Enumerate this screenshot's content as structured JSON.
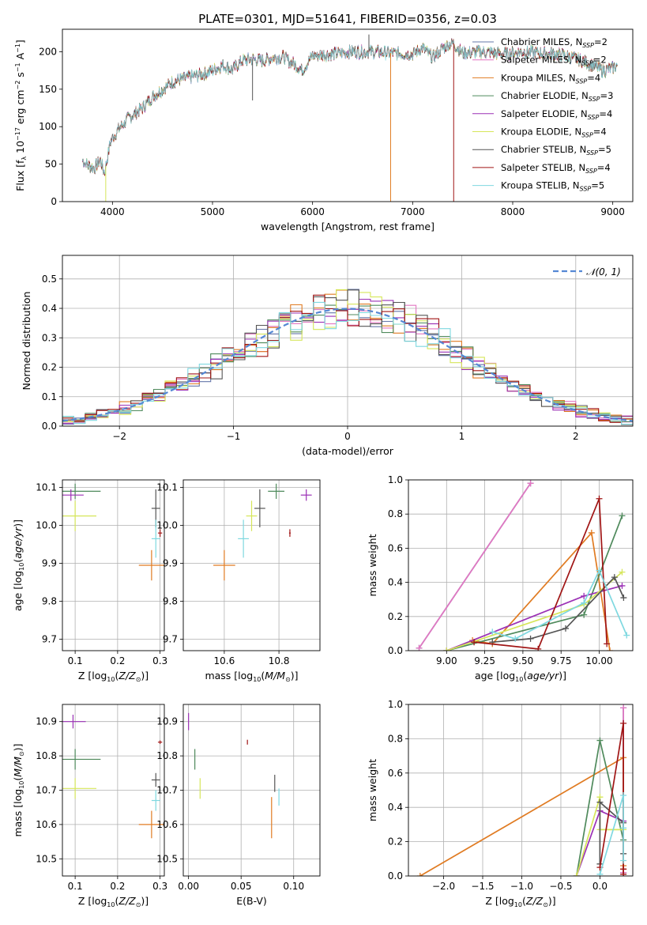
{
  "figure": {
    "title": "PLATE=0301, MJD=51641, FIBERID=0356, z=0.03"
  },
  "colors": {
    "Chabrier MILES": "#6677aa",
    "Salpeter MILES": "#e377c2",
    "Kroupa MILES": "#e07b22",
    "Chabrier ELODIE": "#4f8a5c",
    "Salpeter ELODIE": "#9b30b5",
    "Kroupa ELODIE": "#d6e65a",
    "Chabrier STELIB": "#555555",
    "Salpeter STELIB": "#a01515",
    "Kroupa STELIB": "#7fd8e0",
    "Normal curve": "#5588d4"
  },
  "chart_data": [
    {
      "id": "spectrum",
      "type": "line",
      "xlabel": "wavelength [Angstrom, rest frame]",
      "ylabel": "Flux [f_λ 10⁻¹⁷ erg cm⁻² s⁻¹ A⁻¹]",
      "xlim": [
        3500,
        9200
      ],
      "ylim": [
        0,
        230
      ],
      "xticks": [
        4000,
        5000,
        6000,
        7000,
        8000,
        9000
      ],
      "yticks": [
        0,
        50,
        100,
        150,
        200
      ],
      "legend": "top-right",
      "grid": false,
      "series": [
        {
          "name": "Chabrier MILES, N_SSP=2",
          "label": "Chabrier MILES, N",
          "sub": "SSP",
          "suffix": "=2"
        },
        {
          "name": "Salpeter MILES, N_SSP=2",
          "label": "Salpeter MILES, N",
          "sub": "SSP",
          "suffix": "=2"
        },
        {
          "name": "Kroupa MILES, N_SSP=4",
          "label": "Kroupa MILES, N",
          "sub": "SSP",
          "suffix": "=4"
        },
        {
          "name": "Chabrier ELODIE, N_SSP=3",
          "label": "Chabrier ELODIE, N",
          "sub": "SSP",
          "suffix": "=3"
        },
        {
          "name": "Salpeter ELODIE, N_SSP=4",
          "label": "Salpeter ELODIE, N",
          "sub": "SSP",
          "suffix": "=4"
        },
        {
          "name": "Kroupa ELODIE, N_SSP=4",
          "label": "Kroupa ELODIE, N",
          "sub": "SSP",
          "suffix": "=4"
        },
        {
          "name": "Chabrier STELIB, N_SSP=5",
          "label": "Chabrier STELIB, N",
          "sub": "SSP",
          "suffix": "=5"
        },
        {
          "name": "Salpeter STELIB, N_SSP=4",
          "label": "Salpeter STELIB, N",
          "sub": "SSP",
          "suffix": "=4"
        },
        {
          "name": "Kroupa STELIB, N_SSP=5",
          "label": "Kroupa STELIB, N",
          "sub": "SSP",
          "suffix": "=5"
        }
      ],
      "spectrum_envelope": {
        "x": [
          3700,
          3760,
          3820,
          3880,
          3920,
          3980,
          4050,
          4150,
          4250,
          4300,
          4400,
          4500,
          4600,
          4750,
          4900,
          5000,
          5100,
          5200,
          5300,
          5400,
          5500,
          5600,
          5700,
          5800,
          5900,
          6000,
          6200,
          6400,
          6600,
          6800,
          7000,
          7100,
          7200,
          7300,
          7400,
          7500,
          7700,
          7900,
          8100,
          8300,
          8500,
          8700,
          8900,
          9000,
          9050
        ],
        "y": [
          55,
          48,
          45,
          55,
          38,
          80,
          95,
          110,
          120,
          125,
          140,
          150,
          160,
          165,
          170,
          175,
          182,
          176,
          188,
          190,
          188,
          192,
          193,
          185,
          176,
          195,
          197,
          200,
          200,
          198,
          197,
          205,
          192,
          205,
          212,
          198,
          200,
          197,
          200,
          198,
          196,
          188,
          175,
          178,
          183
        ]
      },
      "features": [
        {
          "x": 3933,
          "y": 0,
          "series": "Kroupa ELODIE"
        },
        {
          "x": 5400,
          "y": 135,
          "series": "Chabrier STELIB"
        },
        {
          "x": 6563,
          "y": 223,
          "series": "Chabrier STELIB"
        },
        {
          "x": 6780,
          "y": 0,
          "series": "Kroupa MILES"
        },
        {
          "x": 7410,
          "y": 0,
          "series": "Salpeter STELIB"
        }
      ]
    },
    {
      "id": "residuals",
      "type": "line",
      "xlabel": "(data-model)/error",
      "ylabel": "Normed distribution",
      "xlim": [
        -2.5,
        2.5
      ],
      "ylim": [
        0,
        0.58
      ],
      "xticks": [
        -2,
        -1,
        0,
        1,
        2
      ],
      "yticks": [
        0.0,
        0.1,
        0.2,
        0.3,
        0.4,
        0.5
      ],
      "grid": true,
      "legend": "top-right",
      "normal_label": "𝒩(0, 1)",
      "bin_width": 0.1
    },
    {
      "id": "age-vs-Z",
      "type": "scatter",
      "xlabel": "Z [log10(Z/Z⊙)]",
      "ylabel": "age  [log10(age/yr)]",
      "xlim": [
        0.07,
        0.31
      ],
      "ylim": [
        9.67,
        10.12
      ],
      "xticks": [
        0.1,
        0.2,
        0.3
      ],
      "yticks": [
        9.7,
        9.8,
        9.9,
        10.0,
        10.1
      ],
      "grid": true,
      "points": [
        {
          "series": "Chabrier ELODIE",
          "x": 0.1,
          "y": 10.09,
          "xerr": 0.06,
          "yerr": 0.02
        },
        {
          "series": "Salpeter ELODIE",
          "x": 0.09,
          "y": 10.08,
          "xerr": 0.03,
          "yerr": 0.015
        },
        {
          "series": "Kroupa ELODIE",
          "x": 0.1,
          "y": 10.025,
          "xerr": 0.05,
          "yerr": 0.04
        },
        {
          "series": "Chabrier STELIB",
          "x": 0.29,
          "y": 10.045,
          "xerr": 0.01,
          "yerr": 0.05
        },
        {
          "series": "Salpeter STELIB",
          "x": 0.3,
          "y": 9.98,
          "xerr": 0.005,
          "yerr": 0.01
        },
        {
          "series": "Kroupa STELIB",
          "x": 0.29,
          "y": 9.965,
          "xerr": 0.01,
          "yerr": 0.05
        },
        {
          "series": "Kroupa MILES",
          "x": 0.28,
          "y": 9.895,
          "xerr": 0.03,
          "yerr": 0.04
        }
      ]
    },
    {
      "id": "age-vs-mass",
      "type": "scatter",
      "xlabel": "mass [log10(M/M⊙)]",
      "ylabel": "",
      "xlim": [
        10.45,
        10.95
      ],
      "ylim": [
        9.67,
        10.12
      ],
      "xticks": [
        10.6,
        10.8
      ],
      "yticks": [
        9.7,
        9.8,
        9.9,
        10.0,
        10.1
      ],
      "grid": true,
      "points": [
        {
          "series": "Chabrier ELODIE",
          "x": 10.79,
          "y": 10.09,
          "xerr": 0.03,
          "yerr": 0.02
        },
        {
          "series": "Salpeter ELODIE",
          "x": 10.9,
          "y": 10.08,
          "xerr": 0.02,
          "yerr": 0.015
        },
        {
          "series": "Kroupa ELODIE",
          "x": 10.7,
          "y": 10.025,
          "xerr": 0.02,
          "yerr": 0.04
        },
        {
          "series": "Chabrier STELIB",
          "x": 10.73,
          "y": 10.045,
          "xerr": 0.02,
          "yerr": 0.05
        },
        {
          "series": "Salpeter STELIB",
          "x": 10.84,
          "y": 9.98,
          "xerr": 0.003,
          "yerr": 0.01
        },
        {
          "series": "Kroupa STELIB",
          "x": 10.67,
          "y": 9.965,
          "xerr": 0.02,
          "yerr": 0.05
        },
        {
          "series": "Kroupa MILES",
          "x": 10.6,
          "y": 9.895,
          "xerr": 0.04,
          "yerr": 0.04
        }
      ]
    },
    {
      "id": "massweight-vs-age",
      "type": "line",
      "xlabel": "age  [log10(age/yr)]",
      "ylabel": "mass weight",
      "xlim": [
        8.75,
        10.22
      ],
      "ylim": [
        0,
        1.0
      ],
      "xticks": [
        9.0,
        9.25,
        9.5,
        9.75,
        10.0
      ],
      "tick_labels": [
        "9.00",
        "9.25",
        "9.50",
        "9.75",
        "10.00"
      ],
      "yticks": [
        0.0,
        0.2,
        0.4,
        0.6,
        0.8,
        1.0
      ],
      "grid": true,
      "series": [
        {
          "name": "Chabrier MILES",
          "x": [
            8.82,
            9.55
          ],
          "y": [
            0.015,
            0.98
          ]
        },
        {
          "name": "Salpeter MILES",
          "x": [
            8.82,
            9.55
          ],
          "y": [
            0.015,
            0.98
          ]
        },
        {
          "name": "Kroupa MILES",
          "x": [
            9.17,
            9.3,
            9.95,
            10.07
          ],
          "y": [
            0.06,
            0.04,
            0.69,
            0.0
          ]
        },
        {
          "name": "Chabrier ELODIE",
          "x": [
            9.0,
            9.9,
            10.15
          ],
          "y": [
            0.0,
            0.21,
            0.79
          ]
        },
        {
          "name": "Salpeter ELODIE",
          "x": [
            9.0,
            9.9,
            10.15
          ],
          "y": [
            0.0,
            0.32,
            0.38
          ]
        },
        {
          "name": "Kroupa ELODIE",
          "x": [
            9.0,
            9.9,
            10.15
          ],
          "y": [
            0.0,
            0.27,
            0.46
          ]
        },
        {
          "name": "Chabrier STELIB",
          "x": [
            9.3,
            9.55,
            9.78,
            10.1,
            10.16
          ],
          "y": [
            0.05,
            0.07,
            0.13,
            0.43,
            0.31
          ]
        },
        {
          "name": "Salpeter STELIB",
          "x": [
            9.18,
            9.6,
            10.0,
            10.05
          ],
          "y": [
            0.05,
            0.01,
            0.89,
            0.04
          ]
        },
        {
          "name": "Kroupa STELIB",
          "x": [
            9.3,
            9.45,
            9.9,
            10.0,
            10.18
          ],
          "y": [
            0.11,
            0.07,
            0.28,
            0.47,
            0.09
          ]
        }
      ]
    },
    {
      "id": "mass-vs-Z",
      "type": "scatter",
      "xlabel": "Z [log10(Z/Z⊙)]",
      "ylabel": "mass [log10(M/M⊙)]",
      "xlim": [
        0.07,
        0.31
      ],
      "ylim": [
        10.45,
        10.95
      ],
      "xticks": [
        0.1,
        0.2,
        0.3
      ],
      "yticks": [
        10.5,
        10.6,
        10.7,
        10.8,
        10.9
      ],
      "grid": true,
      "points": [
        {
          "series": "Salpeter ELODIE",
          "x": 0.095,
          "y": 10.9,
          "xerr": 0.03,
          "yerr": 0.02
        },
        {
          "series": "Chabrier ELODIE",
          "x": 0.1,
          "y": 10.79,
          "xerr": 0.06,
          "yerr": 0.03
        },
        {
          "series": "Kroupa ELODIE",
          "x": 0.1,
          "y": 10.705,
          "xerr": 0.05,
          "yerr": 0.03
        },
        {
          "series": "Salpeter STELIB",
          "x": 0.3,
          "y": 10.84,
          "xerr": 0.005,
          "yerr": 0.005
        },
        {
          "series": "Chabrier STELIB",
          "x": 0.29,
          "y": 10.73,
          "xerr": 0.01,
          "yerr": 0.02
        },
        {
          "series": "Kroupa STELIB",
          "x": 0.29,
          "y": 10.67,
          "xerr": 0.01,
          "yerr": 0.03
        },
        {
          "series": "Kroupa MILES",
          "x": 0.28,
          "y": 10.6,
          "xerr": 0.03,
          "yerr": 0.04
        }
      ]
    },
    {
      "id": "mass-vs-ebv",
      "type": "scatter",
      "xlabel": "E(B-V)",
      "ylabel": "",
      "xlim": [
        -0.005,
        0.125
      ],
      "ylim": [
        10.45,
        10.95
      ],
      "xticks": [
        0.0,
        0.05,
        0.1
      ],
      "tick_labels": [
        "0.00",
        "0.05",
        "0.10"
      ],
      "yticks": [
        10.5,
        10.6,
        10.7,
        10.8,
        10.9
      ],
      "grid": true,
      "points": [
        {
          "series": "Salpeter ELODIE",
          "x": 0.0,
          "y": 10.9,
          "xerr": 0.0,
          "yerr": 0.025
        },
        {
          "series": "Chabrier ELODIE",
          "x": 0.006,
          "y": 10.79,
          "xerr": 0.0,
          "yerr": 0.03
        },
        {
          "series": "Kroupa ELODIE",
          "x": 0.011,
          "y": 10.705,
          "xerr": 0.0,
          "yerr": 0.03
        },
        {
          "series": "Salpeter STELIB",
          "x": 0.056,
          "y": 10.84,
          "xerr": 0.0,
          "yerr": 0.007
        },
        {
          "series": "Chabrier STELIB",
          "x": 0.082,
          "y": 10.72,
          "xerr": 0.0,
          "yerr": 0.025
        },
        {
          "series": "Kroupa STELIB",
          "x": 0.086,
          "y": 10.68,
          "xerr": 0.0,
          "yerr": 0.025
        },
        {
          "series": "Kroupa MILES",
          "x": 0.079,
          "y": 10.62,
          "xerr": 0.0,
          "yerr": 0.06
        }
      ]
    },
    {
      "id": "massweight-vs-Z",
      "type": "line",
      "xlabel": "Z [log10(Z/Z⊙)]",
      "ylabel": "mass weight",
      "xlim": [
        -2.45,
        0.42
      ],
      "ylim": [
        0,
        1.0
      ],
      "xticks": [
        -2.0,
        -1.5,
        -1.0,
        -0.5,
        0.0
      ],
      "yticks": [
        0.0,
        0.2,
        0.4,
        0.6,
        0.8,
        1.0
      ],
      "grid": true,
      "series": [
        {
          "name": "Chabrier MILES",
          "x": [
            0.3,
            0.3
          ],
          "y": [
            0.02,
            0.98
          ]
        },
        {
          "name": "Salpeter MILES",
          "x": [
            0.3,
            0.3
          ],
          "y": [
            0.02,
            0.98
          ]
        },
        {
          "name": "Kroupa MILES",
          "x": [
            -2.3,
            0.3,
            0.3,
            0.3
          ],
          "y": [
            0.0,
            0.69,
            0.06,
            0.04
          ]
        },
        {
          "name": "Chabrier ELODIE",
          "x": [
            -0.3,
            0.0,
            0.3
          ],
          "y": [
            0.0,
            0.79,
            0.21
          ]
        },
        {
          "name": "Salpeter ELODIE",
          "x": [
            -0.3,
            0.0,
            0.3
          ],
          "y": [
            0.0,
            0.38,
            0.32
          ]
        },
        {
          "name": "Kroupa ELODIE",
          "x": [
            -0.3,
            0.0,
            0.0,
            0.3
          ],
          "y": [
            0.0,
            0.46,
            0.27,
            0.27
          ]
        },
        {
          "name": "Chabrier STELIB",
          "x": [
            0.0,
            0.0,
            0.3,
            0.3
          ],
          "y": [
            0.07,
            0.43,
            0.31,
            0.13
          ]
        },
        {
          "name": "Salpeter STELIB",
          "x": [
            0.0,
            0.3,
            0.3,
            0.3
          ],
          "y": [
            0.05,
            0.89,
            0.04,
            0.01
          ]
        },
        {
          "name": "Kroupa STELIB",
          "x": [
            0.0,
            0.3,
            0.3,
            0.3
          ],
          "y": [
            0.01,
            0.47,
            0.28,
            0.09
          ]
        }
      ]
    }
  ]
}
